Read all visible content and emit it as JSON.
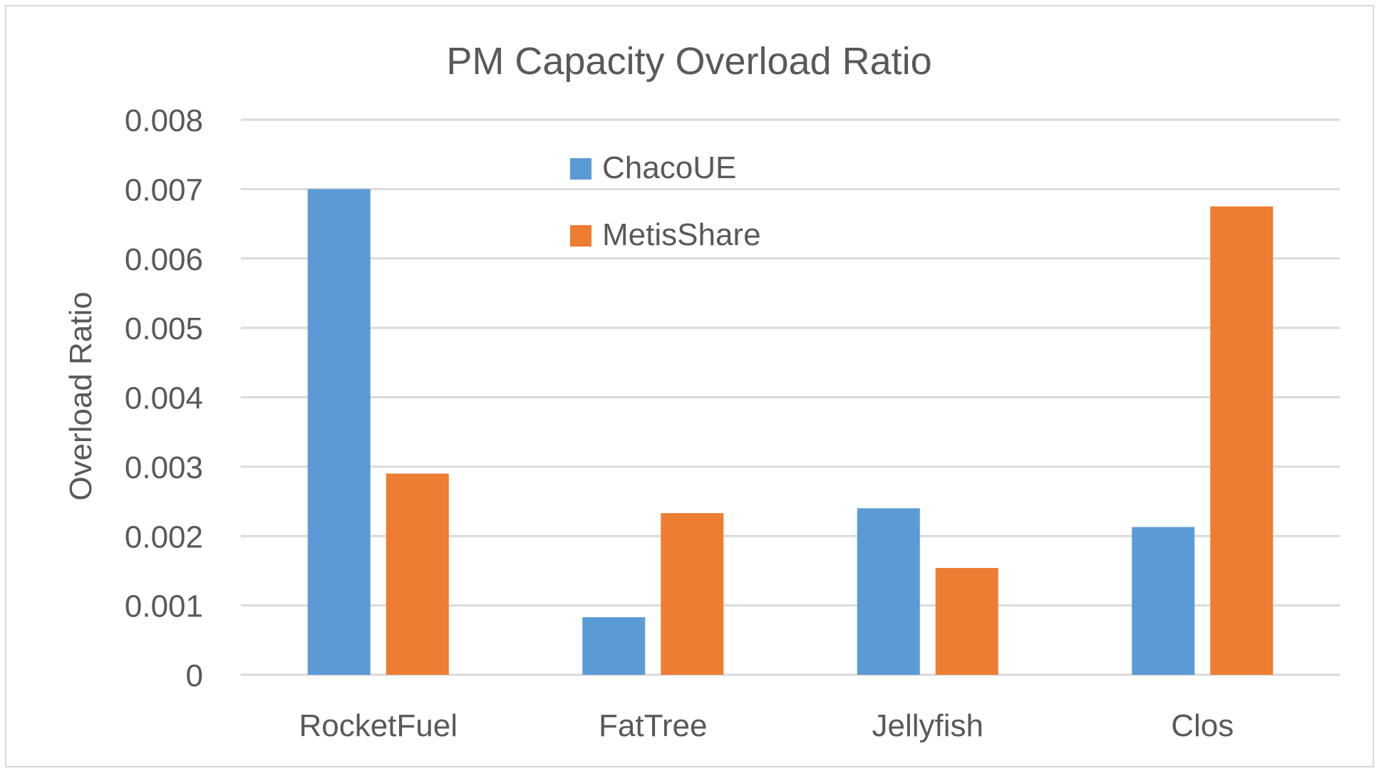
{
  "chart_data": {
    "type": "bar",
    "title": "PM Capacity Overload Ratio",
    "xlabel": "",
    "ylabel": "Overload Ratio",
    "categories": [
      "RocketFuel",
      "FatTree",
      "Jellyfish",
      "Clos"
    ],
    "series": [
      {
        "name": "ChacoUE",
        "color": "#5B9BD5",
        "values": [
          0.007,
          0.00083,
          0.0024,
          0.00213
        ]
      },
      {
        "name": "MetisShare",
        "color": "#ED7D31",
        "values": [
          0.0029,
          0.00233,
          0.00154,
          0.00675
        ]
      }
    ],
    "ylim": [
      0,
      0.008
    ],
    "yticks": [
      "0",
      "0.001",
      "0.002",
      "0.003",
      "0.004",
      "0.005",
      "0.006",
      "0.007",
      "0.008"
    ],
    "grid": true,
    "legend_position": "top-center"
  }
}
